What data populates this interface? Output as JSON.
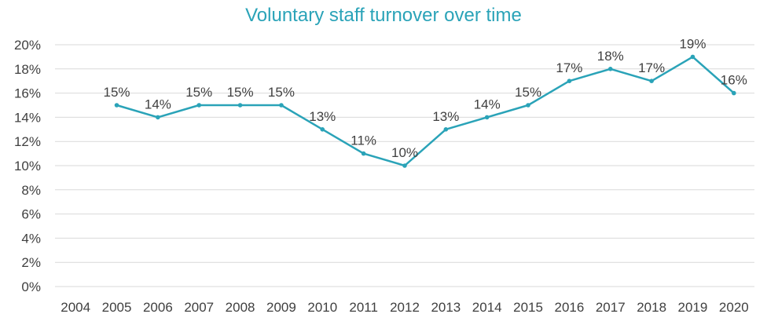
{
  "chart_data": {
    "type": "line",
    "title": "Voluntary staff turnover over time",
    "xlabel": "",
    "ylabel": "",
    "categories": [
      "2004",
      "2005",
      "2006",
      "2007",
      "2008",
      "2009",
      "2010",
      "2011",
      "2012",
      "2013",
      "2014",
      "2015",
      "2016",
      "2017",
      "2018",
      "2019",
      "2020"
    ],
    "series": [
      {
        "values": [
          null,
          15,
          14,
          15,
          15,
          15,
          13,
          11,
          10,
          13,
          14,
          15,
          17,
          18,
          17,
          19,
          16
        ],
        "data_labels": [
          "",
          "15%",
          "14%",
          "15%",
          "15%",
          "15%",
          "13%",
          "11%",
          "10%",
          "13%",
          "14%",
          "15%",
          "17%",
          "18%",
          "17%",
          "19%",
          "16%"
        ]
      }
    ],
    "ylim": [
      0,
      20
    ],
    "yticks": [
      0,
      2,
      4,
      6,
      8,
      10,
      12,
      14,
      16,
      18,
      20
    ],
    "ytick_labels": [
      "0%",
      "2%",
      "4%",
      "6%",
      "8%",
      "10%",
      "12%",
      "14%",
      "16%",
      "18%",
      "20%"
    ],
    "grid": true,
    "legend": "none",
    "colors": {
      "line": "#2aa3b8",
      "title": "#2aa3b8",
      "grid": "#d9d9d9",
      "text": "#404040"
    }
  }
}
